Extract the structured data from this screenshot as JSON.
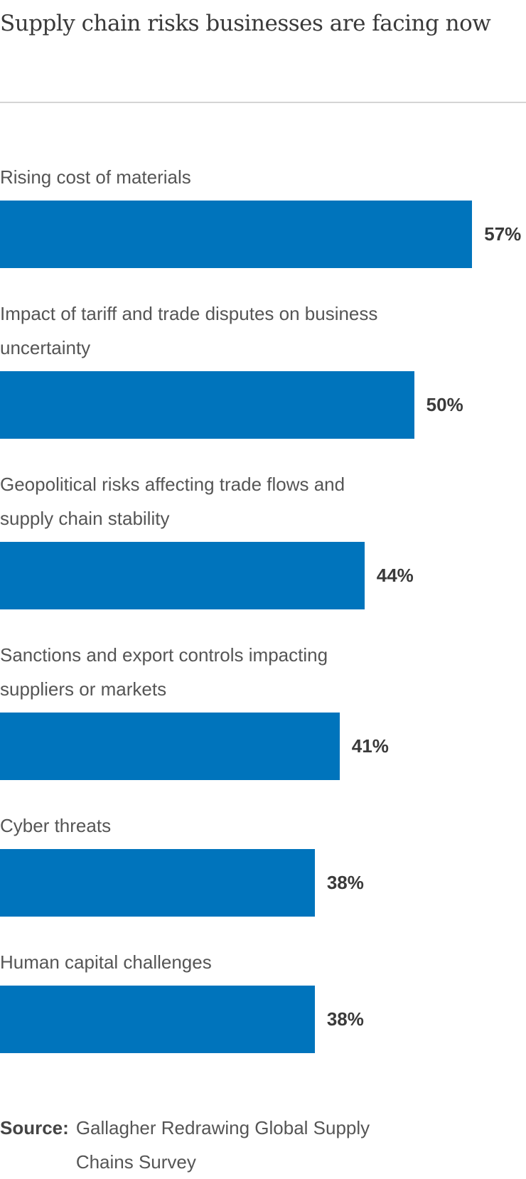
{
  "chart_data": {
    "type": "bar",
    "orientation": "horizontal",
    "title": "Supply chain risks businesses are facing now",
    "categories": [
      "Rising cost of materials",
      "Impact of tariff and trade disputes on business uncertainty",
      "Geopolitical risks affecting trade flows and supply chain stability",
      "Sanctions and export controls impacting suppliers or markets",
      "Cyber threats",
      "Human capital challenges"
    ],
    "values": [
      57,
      50,
      44,
      41,
      38,
      38
    ],
    "value_labels": [
      "57%",
      "50%",
      "44%",
      "41%",
      "38%",
      "38%"
    ],
    "xlim": [
      0,
      63.5
    ],
    "xlabel": "",
    "ylabel": "",
    "grid": false,
    "bar_color": "#0074bc"
  },
  "source": {
    "label": "Source:",
    "text": "Gallagher Redrawing Global Supply Chains Survey"
  }
}
